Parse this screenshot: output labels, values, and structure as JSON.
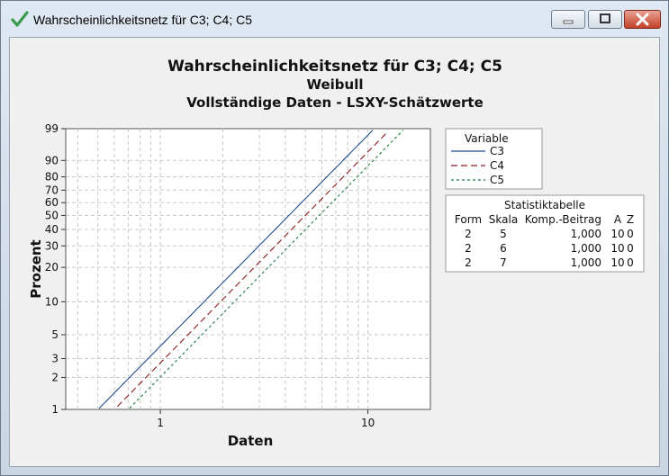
{
  "window": {
    "title": "Wahrscheinlichkeitsnetz für C3; C4; C5"
  },
  "chart_data": {
    "type": "line",
    "title": "Wahrscheinlichkeitsnetz für C3; C4; C5",
    "subtitle1": "Weibull",
    "subtitle2": "Vollständige Daten - LSXY-Schätzwerte",
    "xlabel": "Daten",
    "ylabel": "Prozent",
    "x_scale": "log",
    "y_scale": "weibull",
    "x_ticks": [
      1,
      10
    ],
    "y_ticks": [
      1,
      2,
      3,
      5,
      10,
      20,
      30,
      40,
      50,
      60,
      70,
      80,
      90,
      99
    ],
    "xlim": [
      0.35,
      20
    ],
    "ylim": [
      1,
      99
    ],
    "grid": true,
    "legend": {
      "title": "Variable",
      "placement": "right",
      "entries": [
        {
          "name": "C3",
          "color": "#1f4e8c",
          "dash": "solid"
        },
        {
          "name": "C4",
          "color": "#8b1a1a",
          "dash": "dash"
        },
        {
          "name": "C5",
          "color": "#1e7a3c",
          "dash": "dot"
        }
      ]
    },
    "series": [
      {
        "name": "C3",
        "shape": 2,
        "scale": 5,
        "color": "#1f4e8c"
      },
      {
        "name": "C4",
        "shape": 2,
        "scale": 6,
        "color": "#8b1a1a"
      },
      {
        "name": "C5",
        "shape": 2,
        "scale": 7,
        "color": "#1e7a3c"
      }
    ],
    "stats_table": {
      "title": "Statistiktabelle",
      "headers": [
        "Form",
        "Skala",
        "Komp.-Beitrag",
        "A",
        "Z"
      ],
      "rows": [
        [
          "2",
          "5",
          "1,000",
          "10",
          "0"
        ],
        [
          "2",
          "6",
          "1,000",
          "10",
          "0"
        ],
        [
          "2",
          "7",
          "1,000",
          "10",
          "0"
        ]
      ]
    }
  }
}
